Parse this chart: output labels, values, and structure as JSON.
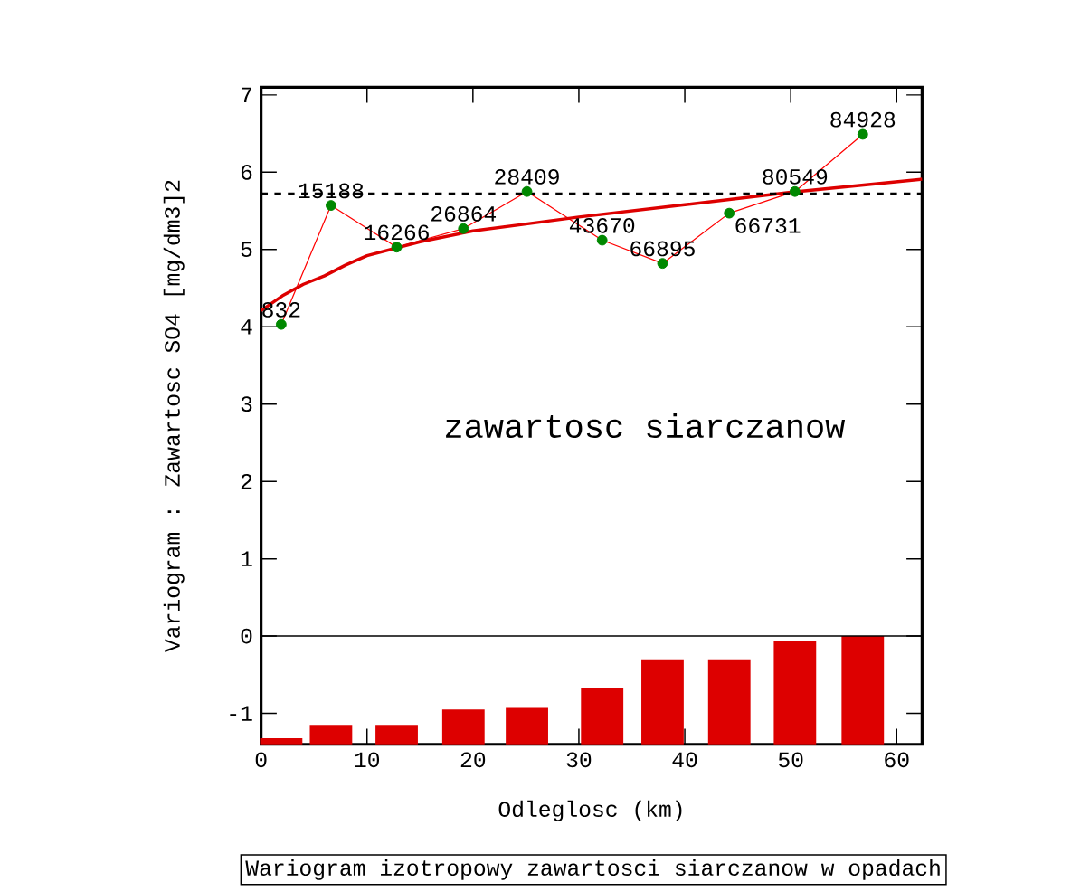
{
  "chart_data": {
    "type": "line",
    "title": "Wariogram izotropowy zawartosci siarczanow w opadach",
    "xlabel": "Odleglosc (km)",
    "ylabel": "Variogram : Zawartosc SO4 [mg/dm3]2",
    "x": [
      1.9,
      6.6,
      12.8,
      19.1,
      25.1,
      32.2,
      37.9,
      44.2,
      50.4,
      56.8
    ],
    "series": [
      {
        "type": "line",
        "color": "#ff0000",
        "values": [
          4.03,
          5.57,
          5.03,
          5.27,
          5.75,
          5.12,
          4.82,
          5.47,
          5.75,
          6.49
        ]
      },
      {
        "type": "scatter",
        "color": "#008800",
        "marker": "circle",
        "values": [
          4.03,
          5.57,
          5.03,
          5.27,
          5.75,
          5.12,
          4.82,
          5.47,
          5.75,
          6.49
        ]
      },
      {
        "color": "#dd0000",
        "x": [
          0,
          2,
          4,
          6,
          8,
          10,
          15,
          20,
          25,
          30,
          40,
          50,
          62.4
        ],
        "values": [
          4.21,
          4.4,
          4.55,
          4.66,
          4.8,
          4.92,
          5.1,
          5.24,
          5.33,
          5.42,
          5.58,
          5.74,
          5.91
        ]
      },
      {
        "type": "bar",
        "color": "#dd0000",
        "base": [
          -1.4,
          -1.4,
          -1.4,
          -1.4,
          -1.4,
          -1.4,
          -1.4,
          -1.4,
          -1.4,
          -1.4
        ],
        "values": [
          0.08,
          0.25,
          0.25,
          0.45,
          0.47,
          0.73,
          1.1,
          1.1,
          1.33,
          1.4
        ]
      }
    ],
    "xlim": [
      0,
      62.4
    ],
    "ylim": [
      -1.4,
      7.1
    ],
    "xticks": [
      0,
      10,
      20,
      30,
      40,
      50,
      60
    ],
    "yticks": [
      -1,
      0,
      1,
      2,
      3,
      4,
      5,
      6,
      7
    ],
    "ref_lines": [
      {
        "axis": "y",
        "value": 0,
        "color": "#000000",
        "line_style": "solid"
      },
      {
        "axis": "y",
        "value": 5.72,
        "color": "#000000",
        "line_style": "dashed"
      }
    ],
    "annotations": [
      "zawartosc siarczanow",
      {
        "text": "832",
        "x": 1.9,
        "y": 4.03
      },
      {
        "text": "15188",
        "x": 6.6,
        "y": 5.57
      },
      {
        "text": "16266",
        "x": 12.8,
        "y": 5.03
      },
      {
        "text": "26864",
        "x": 19.1,
        "y": 5.27
      },
      {
        "text": "28409",
        "x": 25.1,
        "y": 5.75
      },
      {
        "text": "43670",
        "x": 32.2,
        "y": 5.12
      },
      {
        "text": "66895",
        "x": 37.9,
        "y": 4.82
      },
      {
        "text": "66731",
        "x": 44.2,
        "y": 5.47
      },
      {
        "text": "80549",
        "x": 50.4,
        "y": 5.75
      },
      {
        "text": "84928",
        "x": 56.8,
        "y": 6.49
      }
    ],
    "grid": false
  }
}
